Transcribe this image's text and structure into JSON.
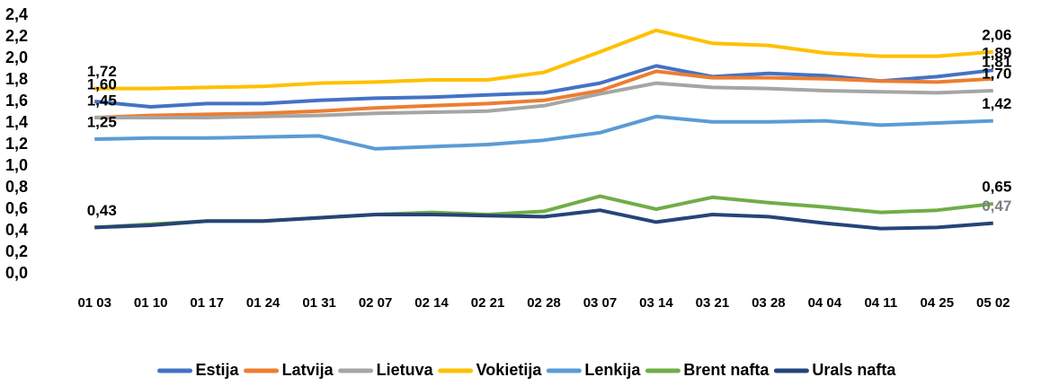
{
  "chart_data": {
    "type": "line",
    "categories": [
      "01 03",
      "01 10",
      "01 17",
      "01 24",
      "01 31",
      "02 07",
      "02 14",
      "02 21",
      "02 28",
      "03 07",
      "03 14",
      "03 21",
      "03 28",
      "04 04",
      "04 11",
      "04 25",
      "05 02"
    ],
    "ylim": [
      0,
      2.4
    ],
    "yticks": [
      {
        "value": 0,
        "label": "0,0"
      },
      {
        "value": 0.2,
        "label": "0,2"
      },
      {
        "value": 0.4,
        "label": "0,4"
      },
      {
        "value": 0.6,
        "label": "0,6"
      },
      {
        "value": 0.8,
        "label": "0,8"
      },
      {
        "value": 1.0,
        "label": "1,0"
      },
      {
        "value": 1.2,
        "label": "1,2"
      },
      {
        "value": 1.4,
        "label": "1,4"
      },
      {
        "value": 1.6,
        "label": "1,6"
      },
      {
        "value": 1.8,
        "label": "1,8"
      },
      {
        "value": 2.0,
        "label": "2,0"
      },
      {
        "value": 2.2,
        "label": "2,2"
      },
      {
        "value": 2.4,
        "label": "2,4"
      }
    ],
    "grid": false,
    "legend": "bottom",
    "series": [
      {
        "name": "Estija",
        "color": "#4472c4",
        "values": [
          1.6,
          1.55,
          1.58,
          1.58,
          1.61,
          1.63,
          1.64,
          1.66,
          1.68,
          1.77,
          1.93,
          1.83,
          1.86,
          1.84,
          1.79,
          1.83,
          1.89
        ],
        "value_labels": [
          "1,60",
          null,
          null,
          null,
          null,
          null,
          null,
          null,
          null,
          null,
          null,
          null,
          null,
          null,
          null,
          null,
          "1,89"
        ]
      },
      {
        "name": "Latvija",
        "color": "#ed7d31",
        "values": [
          1.45,
          1.47,
          1.48,
          1.49,
          1.51,
          1.54,
          1.56,
          1.58,
          1.61,
          1.7,
          1.88,
          1.82,
          1.82,
          1.81,
          1.79,
          1.78,
          1.81
        ],
        "value_labels": [
          null,
          null,
          null,
          null,
          null,
          null,
          null,
          null,
          null,
          null,
          null,
          null,
          null,
          null,
          null,
          null,
          "1,81"
        ]
      },
      {
        "name": "Lietuva",
        "color": "#a5a5a5",
        "values": [
          1.45,
          1.45,
          1.45,
          1.46,
          1.47,
          1.49,
          1.5,
          1.51,
          1.56,
          1.67,
          1.77,
          1.73,
          1.72,
          1.7,
          1.69,
          1.68,
          1.7
        ],
        "value_labels": [
          "1,45",
          null,
          null,
          null,
          null,
          null,
          null,
          null,
          null,
          null,
          null,
          null,
          null,
          null,
          null,
          null,
          "1,70"
        ]
      },
      {
        "name": "Vokietija",
        "color": "#ffc000",
        "values": [
          1.72,
          1.72,
          1.73,
          1.74,
          1.77,
          1.78,
          1.8,
          1.8,
          1.87,
          2.06,
          2.26,
          2.14,
          2.12,
          2.05,
          2.02,
          2.02,
          2.06
        ],
        "value_labels": [
          "1,72",
          null,
          null,
          null,
          null,
          null,
          null,
          null,
          null,
          null,
          null,
          null,
          null,
          null,
          null,
          null,
          "2,06"
        ]
      },
      {
        "name": "Lenkija",
        "color": "#5b9bd5",
        "values": [
          1.25,
          1.26,
          1.26,
          1.27,
          1.28,
          1.16,
          1.18,
          1.2,
          1.24,
          1.31,
          1.46,
          1.41,
          1.41,
          1.42,
          1.38,
          1.4,
          1.42
        ],
        "value_labels": [
          "1,25",
          null,
          null,
          null,
          null,
          null,
          null,
          null,
          null,
          null,
          null,
          null,
          null,
          null,
          null,
          null,
          "1,42"
        ]
      },
      {
        "name": "Brent nafta",
        "color": "#70ad47",
        "values": [
          0.43,
          0.46,
          0.49,
          0.49,
          0.52,
          0.55,
          0.57,
          0.55,
          0.58,
          0.72,
          0.6,
          0.71,
          0.66,
          0.62,
          0.57,
          0.59,
          0.65
        ],
        "value_labels": [
          null,
          null,
          null,
          null,
          null,
          null,
          null,
          null,
          null,
          null,
          null,
          null,
          null,
          null,
          null,
          null,
          "0,65"
        ]
      },
      {
        "name": "Urals nafta",
        "color": "#264478",
        "values": [
          0.43,
          0.45,
          0.49,
          0.49,
          0.52,
          0.55,
          0.55,
          0.54,
          0.53,
          0.59,
          0.48,
          0.55,
          0.53,
          0.47,
          0.42,
          0.43,
          0.47
        ],
        "value_labels": [
          "0,43",
          null,
          null,
          null,
          null,
          null,
          null,
          null,
          null,
          null,
          null,
          null,
          null,
          null,
          null,
          null,
          "0,47"
        ]
      }
    ]
  }
}
